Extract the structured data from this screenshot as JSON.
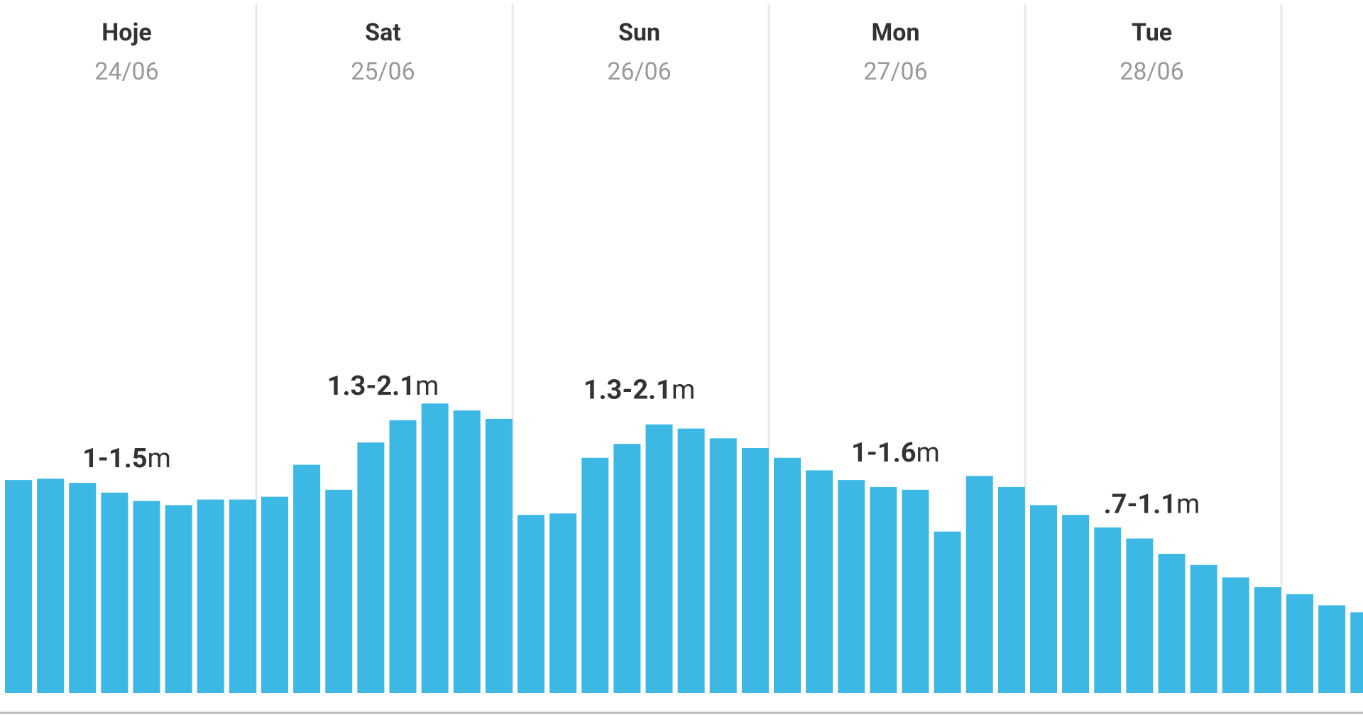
{
  "chart_data": {
    "type": "bar",
    "days": [
      {
        "name": "Hoje",
        "date": "24/06",
        "range": "1-1.5",
        "unit": "m"
      },
      {
        "name": "Sat",
        "date": "25/06",
        "range": "1.3-2.1",
        "unit": "m"
      },
      {
        "name": "Sun",
        "date": "26/06",
        "range": "1.3-2.1",
        "unit": "m"
      },
      {
        "name": "Mon",
        "date": "27/06",
        "range": "1-1.6",
        "unit": "m"
      },
      {
        "name": "Tue",
        "date": "28/06",
        "range": ".7-1.1",
        "unit": "m"
      }
    ],
    "values": [
      1.53,
      1.54,
      1.51,
      1.44,
      1.38,
      1.35,
      1.39,
      1.39,
      1.41,
      1.64,
      1.46,
      1.8,
      1.96,
      2.08,
      2.03,
      1.97,
      1.28,
      1.29,
      1.69,
      1.79,
      1.93,
      1.9,
      1.83,
      1.76,
      1.69,
      1.6,
      1.53,
      1.48,
      1.46,
      1.16,
      1.56,
      1.48,
      1.35,
      1.28,
      1.19,
      1.11,
      1.0,
      0.92,
      0.83,
      0.76,
      0.71,
      0.63,
      0.58
    ],
    "color": "#3db8e5",
    "ylim": [
      0,
      4.5
    ]
  }
}
